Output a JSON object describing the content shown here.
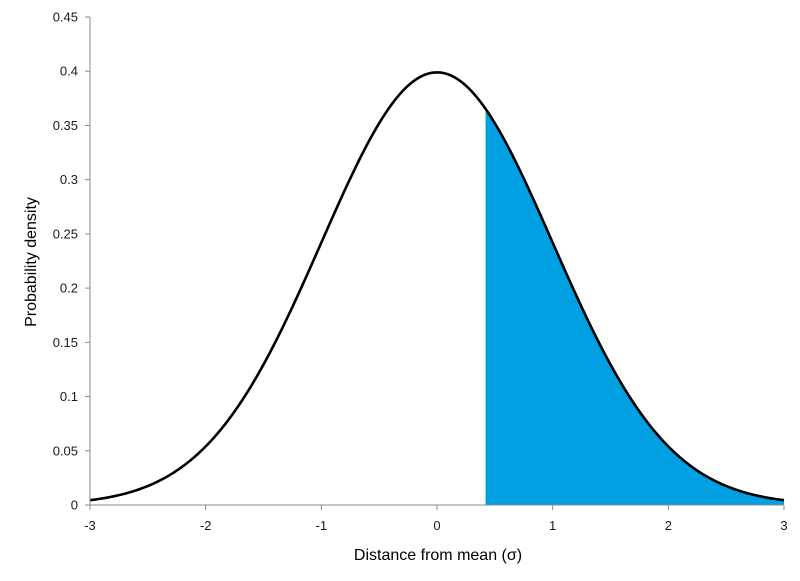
{
  "chart_data": {
    "type": "area",
    "title": "",
    "xlabel": "Distance from mean (σ)",
    "ylabel": "Probability density",
    "xlim": [
      -3,
      3
    ],
    "ylim": [
      0,
      0.45
    ],
    "x_ticks": [
      "-3",
      "-2",
      "-1",
      "0",
      "1",
      "2",
      "3"
    ],
    "y_ticks": [
      "0",
      "0.05",
      "0.1",
      "0.15",
      "0.2",
      "0.25",
      "0.3",
      "0.35",
      "0.4",
      "0.45"
    ],
    "grid": false,
    "legend": "none",
    "series": [
      {
        "x": [
          -3.0,
          -2.75,
          -2.5,
          -2.25,
          -2.0,
          -1.75,
          -1.5,
          -1.25,
          -1.0,
          -0.75,
          -0.5,
          -0.25,
          0.0,
          0.25,
          0.5,
          0.75,
          1.0,
          1.25,
          1.5,
          1.75,
          2.0,
          2.25,
          2.5,
          2.75,
          3.0
        ],
        "y": [
          0.0044,
          0.0091,
          0.0175,
          0.0317,
          0.054,
          0.0863,
          0.1295,
          0.1826,
          0.242,
          0.3011,
          0.3521,
          0.3867,
          0.3989,
          0.3867,
          0.3521,
          0.3011,
          0.242,
          0.1826,
          0.1295,
          0.0863,
          0.054,
          0.0317,
          0.0175,
          0.0091,
          0.0044
        ],
        "color": "#000000"
      }
    ],
    "shaded_region": {
      "x_start": 0.42,
      "x_end": 3.0,
      "color": "#00A0E3"
    }
  }
}
